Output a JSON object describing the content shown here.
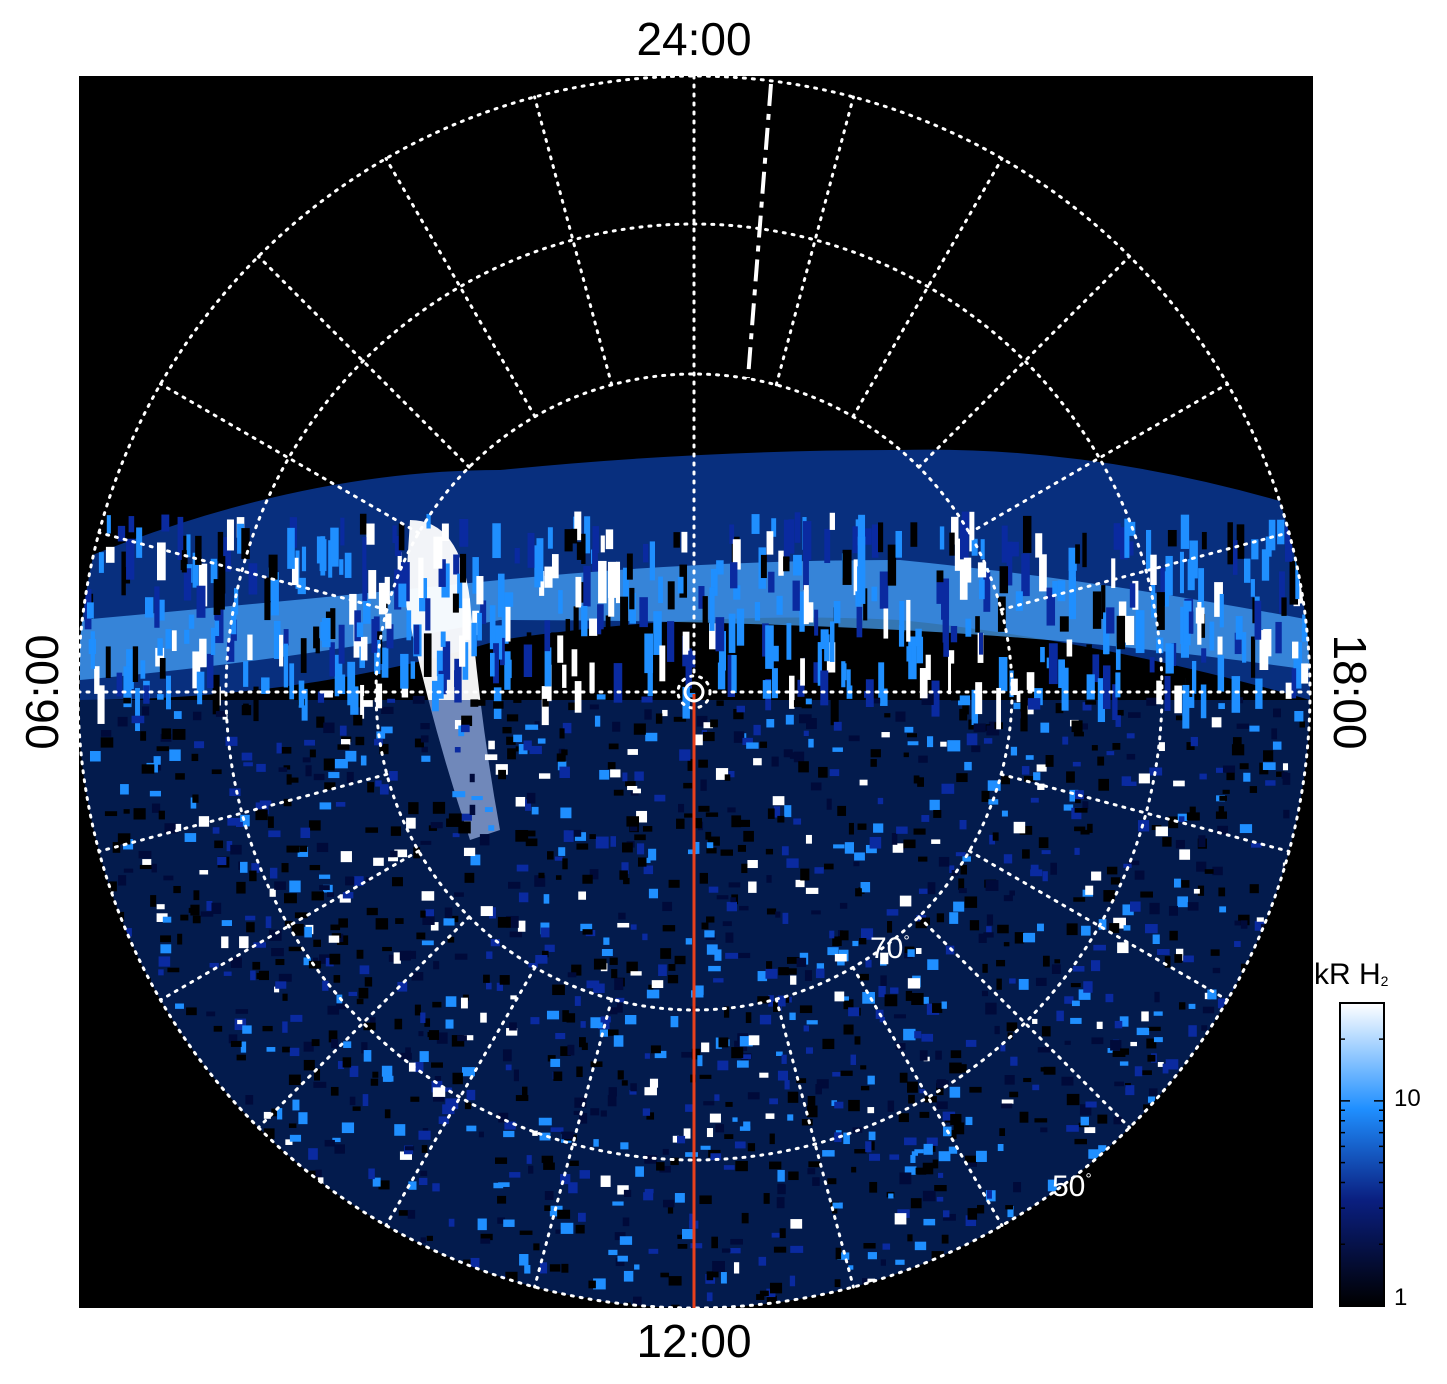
{
  "local_time_labels": {
    "top": "24:00",
    "bottom": "12:00",
    "left": "06:00",
    "right": "18:00"
  },
  "latitude_labels": {
    "inner": "70",
    "outer": "50",
    "degree_symbol": "°"
  },
  "colorbar": {
    "unit": "kR H",
    "unit_subscript": "2",
    "tick_labels": [
      "1",
      "10"
    ],
    "scale": "log",
    "range": [
      1,
      30
    ],
    "colors": [
      "#000000",
      "#000a3a",
      "#0a2aa0",
      "#1f8fff",
      "#ffffff"
    ]
  },
  "colors": {
    "background": "#000000",
    "grid": "#ffffff",
    "meridian_line": "#e8401c",
    "auroral_emission": "#1f8fff"
  },
  "projection": "polar"
}
